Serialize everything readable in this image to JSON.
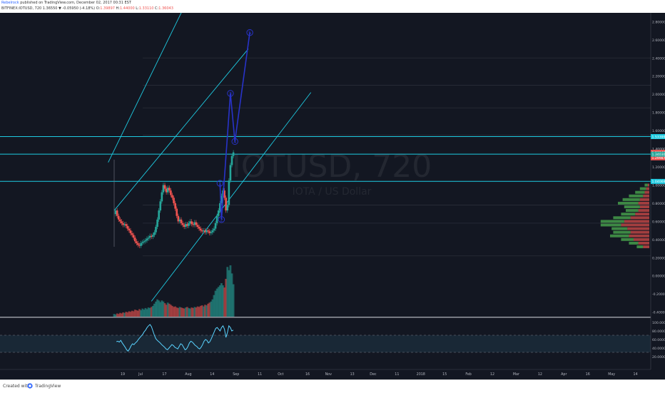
{
  "header": {
    "author": "Rebelrock",
    "published": "published on TradingView.com, December 02, 2017 00:31 EST",
    "symbol_line": "BITFINEX:IOTUSD, 720  1.36550 ▼ -0.05950 (-4.18%)  O:",
    "open": "1.39897",
    "high_label": "H:",
    "high": "1.44000",
    "low_label": "L:",
    "low": "1.33110",
    "close_label": "C:",
    "close": "1.36043"
  },
  "watermark": {
    "symbol": "IOTUSD, 720",
    "subtitle": "IOTA / US Dollar"
  },
  "footer": {
    "created_with": "Created with",
    "brand": "TradingView"
  },
  "colors": {
    "background": "#131722",
    "up": "#26a69a",
    "down": "#ef5350",
    "channel": "#1ecbe1",
    "wave": "#2833c9",
    "rsi": "#5ad3ff"
  },
  "chart_data": {
    "type": "line",
    "symbol": "BITFINEX:IOTUSD",
    "interval": "720",
    "price_axis": {
      "ticks": [
        "2.80000",
        "2.60000",
        "2.40000",
        "2.20000",
        "2.00000",
        "1.80000",
        "1.60000",
        "1.40000",
        "1.20000",
        "1.00000",
        "0.80000",
        "0.60000",
        "0.40000",
        "0.20000",
        "0.00000",
        "-0.20000",
        "-0.40000"
      ],
      "ylim": [
        -0.45,
        2.85
      ],
      "price_labels": [
        {
          "value": 1.53399,
          "text": "1.53399",
          "color": "#1ecbe1"
        },
        {
          "value": 1.36043,
          "text": "1.36043",
          "color": "#ef5350"
        },
        {
          "value": 1.3,
          "text": "1.29987",
          "color": "#ef5350"
        },
        {
          "value": 1.34,
          "text": "1.34030",
          "color": "#26a69a"
        },
        {
          "value": 1.04,
          "text": "1.04069",
          "color": "#1ecbe1"
        }
      ]
    },
    "time_axis": {
      "ticks": [
        "19",
        "Jul",
        "17",
        "Aug",
        "14",
        "Sep",
        "11",
        "Oct",
        "16",
        "Nov",
        "13",
        "Dec",
        "11",
        "2018",
        "15",
        "Feb",
        "12",
        "Mar",
        "12",
        "Apr",
        "16",
        "May",
        "14"
      ],
      "tick_x_index": [
        0,
        12,
        28,
        44,
        60,
        76,
        92,
        106,
        124,
        138,
        154,
        168,
        184,
        200,
        216,
        232,
        248,
        264,
        280,
        296,
        312,
        328,
        344
      ]
    },
    "price_series": [
      [
        0,
        0.68
      ],
      [
        1,
        0.72
      ],
      [
        2,
        0.66
      ],
      [
        3,
        0.62
      ],
      [
        4,
        0.6
      ],
      [
        5,
        0.58
      ],
      [
        6,
        0.56
      ],
      [
        7,
        0.57
      ],
      [
        8,
        0.55
      ],
      [
        9,
        0.52
      ],
      [
        10,
        0.5
      ],
      [
        11,
        0.47
      ],
      [
        12,
        0.45
      ],
      [
        13,
        0.42
      ],
      [
        14,
        0.38
      ],
      [
        15,
        0.36
      ],
      [
        16,
        0.34
      ],
      [
        17,
        0.33
      ],
      [
        18,
        0.36
      ],
      [
        19,
        0.37
      ],
      [
        20,
        0.38
      ],
      [
        21,
        0.39
      ],
      [
        22,
        0.41
      ],
      [
        23,
        0.42
      ],
      [
        24,
        0.44
      ],
      [
        25,
        0.43
      ],
      [
        26,
        0.45
      ],
      [
        27,
        0.48
      ],
      [
        28,
        0.54
      ],
      [
        29,
        0.62
      ],
      [
        30,
        0.72
      ],
      [
        31,
        0.82
      ],
      [
        32,
        0.92
      ],
      [
        33,
        1.0
      ],
      [
        34,
        0.96
      ],
      [
        35,
        0.92
      ],
      [
        36,
        0.97
      ],
      [
        37,
        0.94
      ],
      [
        38,
        0.89
      ],
      [
        39,
        0.86
      ],
      [
        40,
        0.8
      ],
      [
        41,
        0.74
      ],
      [
        42,
        0.66
      ],
      [
        43,
        0.6
      ],
      [
        44,
        0.62
      ],
      [
        45,
        0.58
      ],
      [
        46,
        0.56
      ],
      [
        47,
        0.54
      ],
      [
        48,
        0.57
      ],
      [
        49,
        0.55
      ],
      [
        50,
        0.58
      ],
      [
        51,
        0.6
      ],
      [
        52,
        0.57
      ],
      [
        53,
        0.56
      ],
      [
        54,
        0.59
      ],
      [
        55,
        0.56
      ],
      [
        56,
        0.54
      ],
      [
        57,
        0.52
      ],
      [
        58,
        0.5
      ],
      [
        59,
        0.49
      ],
      [
        60,
        0.5
      ],
      [
        61,
        0.48
      ],
      [
        62,
        0.5
      ],
      [
        63,
        0.49
      ],
      [
        64,
        0.47
      ],
      [
        65,
        0.48
      ],
      [
        66,
        0.5
      ],
      [
        67,
        0.52
      ],
      [
        68,
        0.58
      ],
      [
        69,
        0.66
      ],
      [
        70,
        0.72
      ],
      [
        71,
        0.8
      ],
      [
        72,
        0.88
      ],
      [
        73,
        0.94
      ],
      [
        74,
        0.86
      ],
      [
        75,
        0.72
      ],
      [
        76,
        0.78
      ],
      [
        77,
        1.05
      ],
      [
        78,
        1.22
      ],
      [
        79,
        1.32
      ],
      [
        80,
        1.36
      ]
    ],
    "volume_series": [
      5,
      4,
      6,
      5,
      7,
      6,
      8,
      7,
      9,
      8,
      10,
      9,
      11,
      10,
      13,
      12,
      11,
      14,
      12,
      15,
      13,
      16,
      14,
      17,
      16,
      18,
      20,
      24,
      28,
      32,
      30,
      27,
      30,
      28,
      25,
      22,
      26,
      24,
      22,
      20,
      18,
      19,
      17,
      16,
      18,
      17,
      16,
      15,
      17,
      18,
      16,
      15,
      17,
      16,
      18,
      17,
      19,
      18,
      20,
      21,
      19,
      22,
      21,
      24,
      26,
      28,
      32,
      40,
      48,
      52,
      55,
      58,
      62,
      58,
      54,
      70,
      92,
      86,
      95,
      80,
      60
    ],
    "rsi_series": [
      55,
      56,
      54,
      58,
      52,
      47,
      42,
      36,
      33,
      38,
      45,
      50,
      48,
      52,
      55,
      60,
      64,
      68,
      72,
      78,
      82,
      88,
      92,
      95,
      90,
      80,
      70,
      62,
      58,
      55,
      52,
      48,
      45,
      42,
      38,
      36,
      40,
      44,
      48,
      46,
      42,
      40,
      38,
      44,
      50,
      48,
      42,
      36,
      38,
      44,
      52,
      56,
      54,
      50,
      46,
      44,
      40,
      38,
      42,
      48,
      56,
      60,
      58,
      52,
      55,
      62,
      70,
      78,
      86,
      88,
      84,
      80,
      88,
      92,
      84,
      65,
      76,
      92,
      88,
      80,
      82
    ],
    "rsi_axis": {
      "ticks": [
        "100.0000",
        "80.0000",
        "60.0000",
        "40.0000",
        "20.0000"
      ],
      "levels": [
        70,
        30
      ]
    },
    "horizontal_levels": [
      1.53399,
      1.34,
      1.04069
    ],
    "grid_levels": [
      2.4,
      2.1,
      1.85,
      1.55,
      0.78,
      0.58,
      0.22
    ],
    "channel_lines": [
      {
        "from": [
          -4,
          1.25
        ],
        "to": [
          54,
          3.2
        ]
      },
      {
        "from": [
          0,
          0.72
        ],
        "to": [
          90,
          2.5
        ]
      },
      {
        "from": [
          25,
          -0.28
        ],
        "to": [
          132,
          2.02
        ]
      }
    ],
    "wave_labels": [
      {
        "label": "1",
        "x": 71,
        "y": 1.02
      },
      {
        "label": "2",
        "x": 72,
        "y": 0.62
      },
      {
        "label": "3",
        "x": 78,
        "y": 2.01
      },
      {
        "label": "4",
        "x": 81,
        "y": 1.48
      },
      {
        "label": "5",
        "x": 91,
        "y": 2.68
      }
    ],
    "wave_path": [
      [
        71,
        1.02
      ],
      [
        72,
        0.62
      ],
      [
        78,
        2.01
      ],
      [
        81,
        1.48
      ],
      [
        91,
        2.68
      ]
    ],
    "volume_profile": [
      {
        "price": 1.0,
        "buy": 4,
        "sell": 2
      },
      {
        "price": 0.96,
        "buy": 8,
        "sell": 4
      },
      {
        "price": 0.92,
        "buy": 12,
        "sell": 6
      },
      {
        "price": 0.88,
        "buy": 18,
        "sell": 8
      },
      {
        "price": 0.84,
        "buy": 22,
        "sell": 12
      },
      {
        "price": 0.8,
        "buy": 26,
        "sell": 14
      },
      {
        "price": 0.76,
        "buy": 20,
        "sell": 12
      },
      {
        "price": 0.72,
        "buy": 16,
        "sell": 14
      },
      {
        "price": 0.68,
        "buy": 18,
        "sell": 18
      },
      {
        "price": 0.64,
        "buy": 22,
        "sell": 24
      },
      {
        "price": 0.6,
        "buy": 30,
        "sell": 32
      },
      {
        "price": 0.56,
        "buy": 26,
        "sell": 36
      },
      {
        "price": 0.52,
        "buy": 20,
        "sell": 28
      },
      {
        "price": 0.48,
        "buy": 22,
        "sell": 24
      },
      {
        "price": 0.44,
        "buy": 24,
        "sell": 26
      },
      {
        "price": 0.4,
        "buy": 16,
        "sell": 20
      },
      {
        "price": 0.36,
        "buy": 12,
        "sell": 14
      },
      {
        "price": 0.32,
        "buy": 8,
        "sell": 8
      }
    ]
  }
}
